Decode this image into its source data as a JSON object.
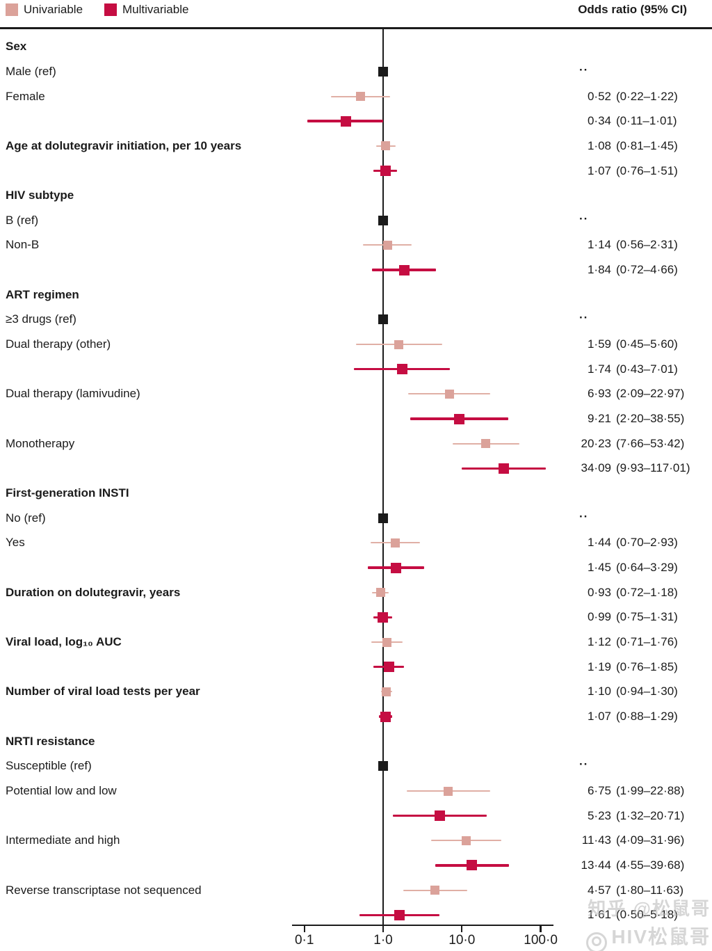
{
  "figure": {
    "legend": {
      "items": [
        {
          "label": "Univariable",
          "color": "#DBA29A"
        },
        {
          "label": "Multivariable",
          "color": "#C50D42"
        }
      ]
    },
    "watermark": {
      "line1": "知乎 @松鼠哥",
      "line2": "HIV松鼠哥"
    }
  },
  "chart_data": {
    "type": "forest",
    "title": "Odds ratio (95% CI)",
    "x_scale": "log10",
    "reference_line_value": 1.0,
    "x_ticks": [
      {
        "label": "0·1",
        "value": 0.1
      },
      {
        "label": "1·0",
        "value": 1
      },
      {
        "label": "10·0",
        "value": 10
      },
      {
        "label": "100·0",
        "value": 100
      }
    ],
    "series_colors": {
      "univariable_marker": "#DBA29A",
      "univariable_line": "#E0AFA5",
      "multivariable_marker": "#C50D42",
      "multivariable_line": "#C50D42",
      "reference_marker": "#1b1b1b"
    },
    "rows": [
      {
        "kind": "header",
        "label": "Sex"
      },
      {
        "kind": "ref",
        "label": "Male (ref)",
        "value_text": "··"
      },
      {
        "kind": "estimate",
        "label": "Female",
        "bold": false,
        "series": "univariable",
        "or": 0.52,
        "lo": 0.22,
        "hi": 1.22,
        "or_text": "0·52",
        "ci_text": "(0·22–1·22)"
      },
      {
        "kind": "estimate",
        "label": "",
        "bold": false,
        "series": "multivariable",
        "or": 0.34,
        "lo": 0.11,
        "hi": 1.01,
        "or_text": "0·34",
        "ci_text": "(0·11–1·01)"
      },
      {
        "kind": "estimate",
        "label": "Age at dolutegravir initiation, per 10 years",
        "bold": true,
        "series": "univariable",
        "or": 1.08,
        "lo": 0.81,
        "hi": 1.45,
        "or_text": "1·08",
        "ci_text": "(0·81–1·45)"
      },
      {
        "kind": "estimate",
        "label": "",
        "bold": false,
        "series": "multivariable",
        "or": 1.07,
        "lo": 0.76,
        "hi": 1.51,
        "or_text": "1·07",
        "ci_text": "(0·76–1·51)"
      },
      {
        "kind": "header",
        "label": "HIV subtype"
      },
      {
        "kind": "ref",
        "label": "B (ref)",
        "value_text": "··"
      },
      {
        "kind": "estimate",
        "label": "Non-B",
        "bold": false,
        "series": "univariable",
        "or": 1.14,
        "lo": 0.56,
        "hi": 2.31,
        "or_text": "1·14",
        "ci_text": "(0·56–2·31)"
      },
      {
        "kind": "estimate",
        "label": "",
        "bold": false,
        "series": "multivariable",
        "or": 1.84,
        "lo": 0.72,
        "hi": 4.66,
        "or_text": "1·84",
        "ci_text": "(0·72–4·66)"
      },
      {
        "kind": "header",
        "label": "ART regimen"
      },
      {
        "kind": "ref",
        "label": "≥3 drugs (ref)",
        "value_text": "··"
      },
      {
        "kind": "estimate",
        "label": "Dual therapy (other)",
        "bold": false,
        "series": "univariable",
        "or": 1.59,
        "lo": 0.45,
        "hi": 5.6,
        "or_text": "1·59",
        "ci_text": "(0·45–5·60)"
      },
      {
        "kind": "estimate",
        "label": "",
        "bold": false,
        "series": "multivariable",
        "or": 1.74,
        "lo": 0.43,
        "hi": 7.01,
        "or_text": "1·74",
        "ci_text": "(0·43–7·01)"
      },
      {
        "kind": "estimate",
        "label": "Dual therapy (lamivudine)",
        "bold": false,
        "series": "univariable",
        "or": 6.93,
        "lo": 2.09,
        "hi": 22.97,
        "or_text": "6·93",
        "ci_text": "(2·09–22·97)"
      },
      {
        "kind": "estimate",
        "label": "",
        "bold": false,
        "series": "multivariable",
        "or": 9.21,
        "lo": 2.2,
        "hi": 38.55,
        "or_text": "9·21",
        "ci_text": "(2·20–38·55)"
      },
      {
        "kind": "estimate",
        "label": "Monotherapy",
        "bold": false,
        "series": "univariable",
        "or": 20.23,
        "lo": 7.66,
        "hi": 53.42,
        "or_text": "20·23",
        "ci_text": "(7·66–53·42)"
      },
      {
        "kind": "estimate",
        "label": "",
        "bold": false,
        "series": "multivariable",
        "or": 34.09,
        "lo": 9.93,
        "hi": 117.01,
        "or_text": "34·09",
        "ci_text": "(9·93–117·01)"
      },
      {
        "kind": "header",
        "label": "First-generation INSTI"
      },
      {
        "kind": "ref",
        "label": "No (ref)",
        "value_text": "··"
      },
      {
        "kind": "estimate",
        "label": "Yes",
        "bold": false,
        "series": "univariable",
        "or": 1.44,
        "lo": 0.7,
        "hi": 2.93,
        "or_text": "1·44",
        "ci_text": "(0·70–2·93)"
      },
      {
        "kind": "estimate",
        "label": "",
        "bold": false,
        "series": "multivariable",
        "or": 1.45,
        "lo": 0.64,
        "hi": 3.29,
        "or_text": "1·45",
        "ci_text": "(0·64–3·29)"
      },
      {
        "kind": "estimate",
        "label": "Duration on dolutegravir, years",
        "bold": true,
        "series": "univariable",
        "or": 0.93,
        "lo": 0.72,
        "hi": 1.18,
        "or_text": "0·93",
        "ci_text": "(0·72–1·18)"
      },
      {
        "kind": "estimate",
        "label": "",
        "bold": false,
        "series": "multivariable",
        "or": 0.99,
        "lo": 0.75,
        "hi": 1.31,
        "or_text": "0·99",
        "ci_text": "(0·75–1·31)"
      },
      {
        "kind": "estimate",
        "label": "Viral load, log₁₀ AUC",
        "bold": true,
        "series": "univariable",
        "or": 1.12,
        "lo": 0.71,
        "hi": 1.76,
        "or_text": "1·12",
        "ci_text": "(0·71–1·76)"
      },
      {
        "kind": "estimate",
        "label": "",
        "bold": false,
        "series": "multivariable",
        "or": 1.19,
        "lo": 0.76,
        "hi": 1.85,
        "or_text": "1·19",
        "ci_text": "(0·76–1·85)"
      },
      {
        "kind": "estimate",
        "label": "Number of viral load tests per year",
        "bold": true,
        "series": "univariable",
        "or": 1.1,
        "lo": 0.94,
        "hi": 1.3,
        "or_text": "1·10",
        "ci_text": "(0·94–1·30)"
      },
      {
        "kind": "estimate",
        "label": "",
        "bold": false,
        "series": "multivariable",
        "or": 1.07,
        "lo": 0.88,
        "hi": 1.29,
        "or_text": "1·07",
        "ci_text": "(0·88–1·29)"
      },
      {
        "kind": "header",
        "label": "NRTI resistance"
      },
      {
        "kind": "ref",
        "label": "Susceptible (ref)",
        "value_text": "··"
      },
      {
        "kind": "estimate",
        "label": "Potential low and low",
        "bold": false,
        "series": "univariable",
        "or": 6.75,
        "lo": 1.99,
        "hi": 22.88,
        "or_text": "6·75",
        "ci_text": "(1·99–22·88)"
      },
      {
        "kind": "estimate",
        "label": "",
        "bold": false,
        "series": "multivariable",
        "or": 5.23,
        "lo": 1.32,
        "hi": 20.71,
        "or_text": "5·23",
        "ci_text": "(1·32–20·71)"
      },
      {
        "kind": "estimate",
        "label": "Intermediate and high",
        "bold": false,
        "series": "univariable",
        "or": 11.43,
        "lo": 4.09,
        "hi": 31.96,
        "or_text": "11·43",
        "ci_text": "(4·09–31·96)"
      },
      {
        "kind": "estimate",
        "label": "",
        "bold": false,
        "series": "multivariable",
        "or": 13.44,
        "lo": 4.55,
        "hi": 39.68,
        "or_text": "13·44",
        "ci_text": "(4·55–39·68)"
      },
      {
        "kind": "estimate",
        "label": "Reverse transcriptase not sequenced",
        "bold": false,
        "series": "univariable",
        "or": 4.57,
        "lo": 1.8,
        "hi": 11.63,
        "or_text": "4·57",
        "ci_text": "(1·80–11·63)"
      },
      {
        "kind": "estimate",
        "label": "",
        "bold": false,
        "series": "multivariable",
        "or": 1.61,
        "lo": 0.5,
        "hi": 5.18,
        "or_text": "1·61",
        "ci_text": "(0·50–5·18)"
      }
    ]
  }
}
